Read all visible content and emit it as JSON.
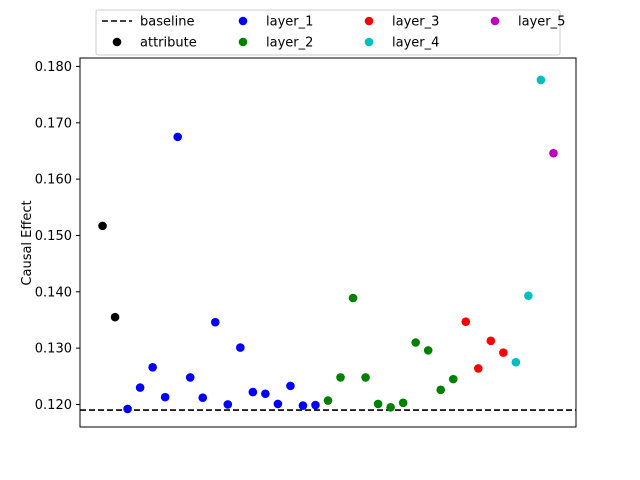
{
  "chart_data": {
    "type": "scatter",
    "title": "",
    "xlabel": "",
    "ylabel": "Causal Effect",
    "ylim": [
      0.116,
      0.1815
    ],
    "xlim": [
      -1.8,
      37.8
    ],
    "yticks": [
      0.12,
      0.13,
      0.14,
      0.15,
      0.16,
      0.17,
      0.18
    ],
    "ytick_labels": [
      "0.120",
      "0.130",
      "0.140",
      "0.150",
      "0.160",
      "0.170",
      "0.180"
    ],
    "show_xticks": false,
    "grid": false,
    "legend_position": "top-center",
    "legend_columns": 4,
    "baseline": {
      "name": "baseline",
      "value": 0.119,
      "style": "dashed",
      "color": "#000000"
    },
    "series": [
      {
        "name": "attribute",
        "color": "#000000",
        "x": [
          0,
          1
        ],
        "y": [
          0.1517,
          0.1355
        ]
      },
      {
        "name": "layer_1",
        "color": "#0000ff",
        "x": [
          2,
          3,
          4,
          5,
          6,
          7,
          8,
          9,
          10,
          11,
          12,
          13,
          14,
          15,
          16,
          17
        ],
        "y": [
          0.1192,
          0.123,
          0.1266,
          0.1213,
          0.1675,
          0.1248,
          0.1212,
          0.1346,
          0.12,
          0.1301,
          0.1222,
          0.1219,
          0.1201,
          0.1233,
          0.1198,
          0.1199
        ]
      },
      {
        "name": "layer_2",
        "color": "#008000",
        "x": [
          18,
          19,
          20,
          21,
          22,
          23,
          24,
          25,
          26,
          27,
          28
        ],
        "y": [
          0.1207,
          0.1248,
          0.1389,
          0.1248,
          0.1201,
          0.1195,
          0.1203,
          0.131,
          0.1296,
          0.1226,
          0.1245
        ]
      },
      {
        "name": "layer_3",
        "color": "#ff0000",
        "x": [
          29,
          30,
          31,
          32
        ],
        "y": [
          0.1347,
          0.1264,
          0.1313,
          0.1292
        ]
      },
      {
        "name": "layer_4",
        "color": "#00bfbf",
        "x": [
          33,
          34,
          35
        ],
        "y": [
          0.1275,
          0.1393,
          0.1776
        ]
      },
      {
        "name": "layer_5",
        "color": "#bf00bf",
        "x": [
          36
        ],
        "y": [
          0.1646
        ]
      }
    ],
    "legend_entries": [
      {
        "label": "baseline",
        "kind": "line",
        "color": "#000000"
      },
      {
        "label": "attribute",
        "kind": "marker",
        "color": "#000000"
      },
      {
        "label": "layer_1",
        "kind": "marker",
        "color": "#0000ff"
      },
      {
        "label": "layer_2",
        "kind": "marker",
        "color": "#008000"
      },
      {
        "label": "layer_3",
        "kind": "marker",
        "color": "#ff0000"
      },
      {
        "label": "layer_4",
        "kind": "marker",
        "color": "#00bfbf"
      },
      {
        "label": "layer_5",
        "kind": "marker",
        "color": "#bf00bf"
      }
    ]
  }
}
